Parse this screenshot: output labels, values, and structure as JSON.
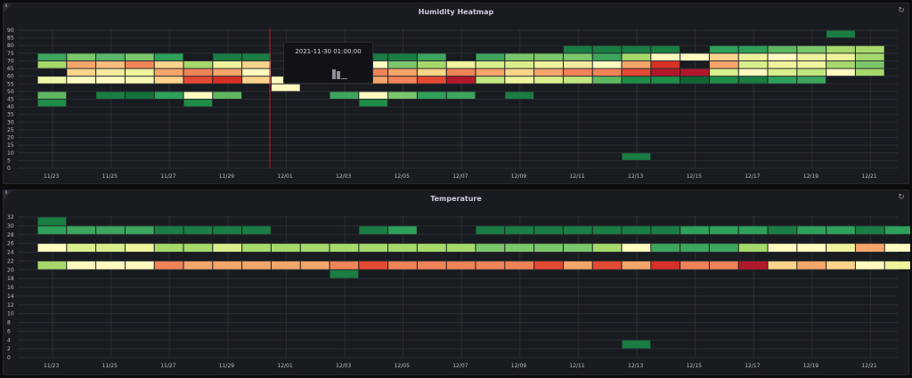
{
  "panels": [
    {
      "title": "Humidity Heatmap",
      "y_ticks": [
        "90",
        "85",
        "80",
        "75",
        "70",
        "65",
        "60",
        "55",
        "50",
        "45",
        "40",
        "35",
        "30",
        "25",
        "20",
        "15",
        "10",
        "5",
        "0"
      ],
      "x_ticks": [
        "11/23",
        "11/25",
        "11/27",
        "11/29",
        "12/01",
        "12/03",
        "12/05",
        "12/07",
        "12/09",
        "12/11",
        "12/13",
        "12/15",
        "12/17",
        "12/19",
        "12/21"
      ],
      "cells": [
        [
          0,
          70,
          "#3da55e"
        ],
        [
          0,
          65,
          "#a6d96a"
        ],
        [
          0,
          55,
          "#eef6a8"
        ],
        [
          0,
          45,
          "#5fb760"
        ],
        [
          0,
          40,
          "#1f8c48"
        ],
        [
          1,
          70,
          "#7cc66b"
        ],
        [
          1,
          65,
          "#f6a56a"
        ],
        [
          1,
          60,
          "#f9d589"
        ],
        [
          1,
          55,
          "#fefcc3"
        ],
        [
          2,
          70,
          "#5bb76b"
        ],
        [
          2,
          65,
          "#fbbd7c"
        ],
        [
          2,
          60,
          "#f3eba0"
        ],
        [
          2,
          55,
          "#fefac0"
        ],
        [
          2,
          45,
          "#1a7d43"
        ],
        [
          3,
          70,
          "#7cc66b"
        ],
        [
          3,
          65,
          "#f08357"
        ],
        [
          3,
          60,
          "#eef39c"
        ],
        [
          3,
          55,
          "#f3f7b0"
        ],
        [
          3,
          45,
          "#14713c"
        ],
        [
          4,
          70,
          "#2ea05a"
        ],
        [
          4,
          65,
          "#f9d589"
        ],
        [
          4,
          60,
          "#f6a56a"
        ],
        [
          4,
          55,
          "#fbd38a"
        ],
        [
          4,
          45,
          "#2ea05a"
        ],
        [
          5,
          65,
          "#a6d96a"
        ],
        [
          5,
          60,
          "#f08357"
        ],
        [
          5,
          55,
          "#e34a33"
        ],
        [
          5,
          45,
          "#fefac0"
        ],
        [
          5,
          40,
          "#1f8c48"
        ],
        [
          6,
          70,
          "#1a7d43"
        ],
        [
          6,
          65,
          "#eef39c"
        ],
        [
          6,
          60,
          "#f6a56a"
        ],
        [
          6,
          55,
          "#d73027"
        ],
        [
          6,
          45,
          "#5fb760"
        ],
        [
          7,
          70,
          "#1a7d43"
        ],
        [
          7,
          65,
          "#f9d589"
        ],
        [
          7,
          60,
          "#fefac0"
        ],
        [
          7,
          55,
          "#fbd38a"
        ],
        [
          8,
          55,
          "#fefac0"
        ],
        [
          8,
          50,
          "#fefac0"
        ],
        [
          10,
          60,
          "#f3eba0"
        ],
        [
          10,
          55,
          "#f6a56a"
        ],
        [
          10,
          45,
          "#3da55e"
        ],
        [
          11,
          70,
          "#1a7d43"
        ],
        [
          11,
          65,
          "#fefac0"
        ],
        [
          11,
          60,
          "#f08357"
        ],
        [
          11,
          55,
          "#f6a56a"
        ],
        [
          11,
          45,
          "#fefac0"
        ],
        [
          11,
          40,
          "#1f8c48"
        ],
        [
          12,
          70,
          "#1a7d43"
        ],
        [
          12,
          65,
          "#7cc66b"
        ],
        [
          12,
          60,
          "#f6a56a"
        ],
        [
          12,
          55,
          "#f08357"
        ],
        [
          12,
          45,
          "#7cc66b"
        ],
        [
          13,
          70,
          "#3da55e"
        ],
        [
          13,
          65,
          "#a6d96a"
        ],
        [
          13,
          60,
          "#f9d589"
        ],
        [
          13,
          55,
          "#e34a33"
        ],
        [
          13,
          45,
          "#2ea05a"
        ],
        [
          14,
          65,
          "#eef39c"
        ],
        [
          14,
          60,
          "#f08357"
        ],
        [
          14,
          55,
          "#b2182b"
        ],
        [
          14,
          45,
          "#3da55e"
        ],
        [
          15,
          70,
          "#3da55e"
        ],
        [
          15,
          65,
          "#d9ef8b"
        ],
        [
          15,
          60,
          "#f6a56a"
        ],
        [
          15,
          55,
          "#c2e67e"
        ],
        [
          16,
          70,
          "#7cc66b"
        ],
        [
          16,
          65,
          "#d9ef8b"
        ],
        [
          16,
          60,
          "#f9d589"
        ],
        [
          16,
          55,
          "#eef39c"
        ],
        [
          16,
          45,
          "#1a7d43"
        ],
        [
          17,
          70,
          "#7cc66b"
        ],
        [
          17,
          65,
          "#eef39c"
        ],
        [
          17,
          60,
          "#f6a56a"
        ],
        [
          17,
          55,
          "#d9ef8b"
        ],
        [
          18,
          75,
          "#1a7d43"
        ],
        [
          18,
          70,
          "#7cc66b"
        ],
        [
          18,
          65,
          "#f3eba0"
        ],
        [
          18,
          60,
          "#f08357"
        ],
        [
          18,
          55,
          "#c2e67e"
        ],
        [
          19,
          75,
          "#1a7d43"
        ],
        [
          19,
          70,
          "#3da55e"
        ],
        [
          19,
          65,
          "#fefac0"
        ],
        [
          19,
          60,
          "#f08357"
        ],
        [
          19,
          55,
          "#5fb760"
        ],
        [
          20,
          75,
          "#1a7d43"
        ],
        [
          20,
          70,
          "#a6d96a"
        ],
        [
          20,
          65,
          "#f6a56a"
        ],
        [
          20,
          60,
          "#e34a33"
        ],
        [
          20,
          55,
          "#1f8c48"
        ],
        [
          20,
          5,
          "#1a7d43"
        ],
        [
          21,
          75,
          "#1a7d43"
        ],
        [
          21,
          70,
          "#fefac0"
        ],
        [
          21,
          65,
          "#d73027"
        ],
        [
          21,
          60,
          "#b2182b"
        ],
        [
          21,
          55,
          "#1f8c48"
        ],
        [
          22,
          70,
          "#fefac0"
        ],
        [
          22,
          60,
          "#b2182b"
        ],
        [
          22,
          55,
          "#0f6634"
        ],
        [
          23,
          75,
          "#2ea05a"
        ],
        [
          23,
          70,
          "#fbd38a"
        ],
        [
          23,
          65,
          "#f6a56a"
        ],
        [
          23,
          60,
          "#d9ef8b"
        ],
        [
          23,
          55,
          "#1f8c48"
        ],
        [
          24,
          75,
          "#2ea05a"
        ],
        [
          24,
          70,
          "#eef39c"
        ],
        [
          24,
          65,
          "#d9ef8b"
        ],
        [
          24,
          60,
          "#fefac0"
        ],
        [
          24,
          55,
          "#1a7d43"
        ],
        [
          25,
          75,
          "#5fb760"
        ],
        [
          25,
          70,
          "#fefac0"
        ],
        [
          25,
          65,
          "#eef39c"
        ],
        [
          25,
          60,
          "#d9ef8b"
        ],
        [
          25,
          55,
          "#2ea05a"
        ],
        [
          26,
          75,
          "#7cc66b"
        ],
        [
          26,
          70,
          "#eef39c"
        ],
        [
          26,
          65,
          "#eef39c"
        ],
        [
          26,
          60,
          "#c2e67e"
        ],
        [
          26,
          55,
          "#3da55e"
        ],
        [
          27,
          85,
          "#1a7d43"
        ],
        [
          27,
          75,
          "#a6d96a"
        ],
        [
          27,
          70,
          "#eef39c"
        ],
        [
          27,
          65,
          "#a6d96a"
        ],
        [
          27,
          60,
          "#fefac0"
        ],
        [
          28,
          75,
          "#a6d96a"
        ],
        [
          28,
          70,
          "#a6d96a"
        ],
        [
          28,
          65,
          "#7cc66b"
        ],
        [
          28,
          60,
          "#a6d96a"
        ]
      ]
    },
    {
      "title": "Temperature",
      "y_ticks": [
        "32",
        "30",
        "28",
        "26",
        "24",
        "22",
        "20",
        "18",
        "16",
        "14",
        "12",
        "10",
        "8",
        "6",
        "4",
        "2",
        "0"
      ],
      "x_ticks": [
        "11/23",
        "11/25",
        "11/27",
        "11/29",
        "12/01",
        "12/03",
        "12/05",
        "12/07",
        "12/09",
        "12/11",
        "12/13",
        "12/15",
        "12/17",
        "12/19",
        "12/21"
      ],
      "cells": [
        [
          0,
          30,
          "#1a7d43"
        ],
        [
          0,
          28,
          "#2ea05a"
        ],
        [
          0,
          24,
          "#fefac0"
        ],
        [
          0,
          20,
          "#a6d96a"
        ],
        [
          1,
          28,
          "#3da55e"
        ],
        [
          1,
          24,
          "#d9ef8b"
        ],
        [
          1,
          20,
          "#fefac0"
        ],
        [
          2,
          28,
          "#3da55e"
        ],
        [
          2,
          24,
          "#d9ef8b"
        ],
        [
          2,
          20,
          "#fefac0"
        ],
        [
          3,
          28,
          "#3da55e"
        ],
        [
          3,
          24,
          "#eef39c"
        ],
        [
          3,
          20,
          "#fefac0"
        ],
        [
          4,
          28,
          "#1a7d43"
        ],
        [
          4,
          24,
          "#a6d96a"
        ],
        [
          4,
          20,
          "#f08357"
        ],
        [
          5,
          28,
          "#1a7d43"
        ],
        [
          5,
          24,
          "#a6d96a"
        ],
        [
          5,
          20,
          "#f6a56a"
        ],
        [
          6,
          28,
          "#1a7d43"
        ],
        [
          6,
          24,
          "#d9ef8b"
        ],
        [
          6,
          20,
          "#f6a56a"
        ],
        [
          7,
          28,
          "#1a7d43"
        ],
        [
          7,
          24,
          "#a6d96a"
        ],
        [
          7,
          20,
          "#f6a56a"
        ],
        [
          8,
          24,
          "#a6d96a"
        ],
        [
          8,
          20,
          "#f6a56a"
        ],
        [
          9,
          24,
          "#a6d96a"
        ],
        [
          9,
          20,
          "#f6a56a"
        ],
        [
          10,
          24,
          "#a6d96a"
        ],
        [
          10,
          20,
          "#f08357"
        ],
        [
          10,
          18,
          "#1a7d43"
        ],
        [
          11,
          28,
          "#1a7d43"
        ],
        [
          11,
          24,
          "#a6d96a"
        ],
        [
          11,
          20,
          "#e34a33"
        ],
        [
          12,
          28,
          "#2ea05a"
        ],
        [
          12,
          24,
          "#a6d96a"
        ],
        [
          12,
          20,
          "#f08357"
        ],
        [
          13,
          24,
          "#a6d96a"
        ],
        [
          13,
          20,
          "#f08357"
        ],
        [
          14,
          24,
          "#a6d96a"
        ],
        [
          14,
          20,
          "#f08357"
        ],
        [
          15,
          28,
          "#1a7d43"
        ],
        [
          15,
          24,
          "#7cc66b"
        ],
        [
          15,
          20,
          "#f08357"
        ],
        [
          16,
          28,
          "#1a7d43"
        ],
        [
          16,
          24,
          "#7cc66b"
        ],
        [
          16,
          20,
          "#f08357"
        ],
        [
          17,
          28,
          "#1a7d43"
        ],
        [
          17,
          24,
          "#7cc66b"
        ],
        [
          17,
          20,
          "#e34a33"
        ],
        [
          18,
          28,
          "#1a7d43"
        ],
        [
          18,
          24,
          "#7cc66b"
        ],
        [
          18,
          20,
          "#f6a56a"
        ],
        [
          19,
          28,
          "#1a7d43"
        ],
        [
          19,
          24,
          "#a6d96a"
        ],
        [
          19,
          20,
          "#e34a33"
        ],
        [
          20,
          28,
          "#1a7d43"
        ],
        [
          20,
          24,
          "#fefac0"
        ],
        [
          20,
          20,
          "#f6a56a"
        ],
        [
          20,
          2,
          "#1a7d43"
        ],
        [
          21,
          28,
          "#1a7d43"
        ],
        [
          21,
          24,
          "#3da55e"
        ],
        [
          21,
          20,
          "#d73027"
        ],
        [
          22,
          28,
          "#2ea05a"
        ],
        [
          22,
          24,
          "#3da55e"
        ],
        [
          22,
          20,
          "#f08357"
        ],
        [
          23,
          28,
          "#2ea05a"
        ],
        [
          23,
          24,
          "#3da55e"
        ],
        [
          23,
          20,
          "#f08357"
        ],
        [
          24,
          28,
          "#2ea05a"
        ],
        [
          24,
          24,
          "#a6d96a"
        ],
        [
          24,
          20,
          "#b2182b"
        ],
        [
          25,
          28,
          "#1a7d43"
        ],
        [
          25,
          24,
          "#fefac0"
        ],
        [
          25,
          20,
          "#fbd38a"
        ],
        [
          26,
          28,
          "#2ea05a"
        ],
        [
          26,
          24,
          "#fefac0"
        ],
        [
          26,
          20,
          "#f6a56a"
        ],
        [
          27,
          28,
          "#2ea05a"
        ],
        [
          27,
          24,
          "#eef39c"
        ],
        [
          27,
          20,
          "#fbd38a"
        ],
        [
          28,
          28,
          "#1a7d43"
        ],
        [
          28,
          24,
          "#f6a56a"
        ],
        [
          28,
          20,
          "#fefac0"
        ],
        [
          29,
          28,
          "#2ea05a"
        ],
        [
          29,
          24,
          "#fefac0"
        ],
        [
          29,
          20,
          "#eef39c"
        ],
        [
          30,
          28,
          "#1a7d43"
        ],
        [
          30,
          24,
          "#eef39c"
        ],
        [
          30,
          20,
          "#fefac0"
        ]
      ]
    }
  ],
  "tooltip": {
    "time": "2021-11-30 01:00:00"
  },
  "colors": {
    "background": "#0b0c0e",
    "panel": "#181b1f",
    "grid": "#2a2d33",
    "cursor": "#c4162a"
  }
}
